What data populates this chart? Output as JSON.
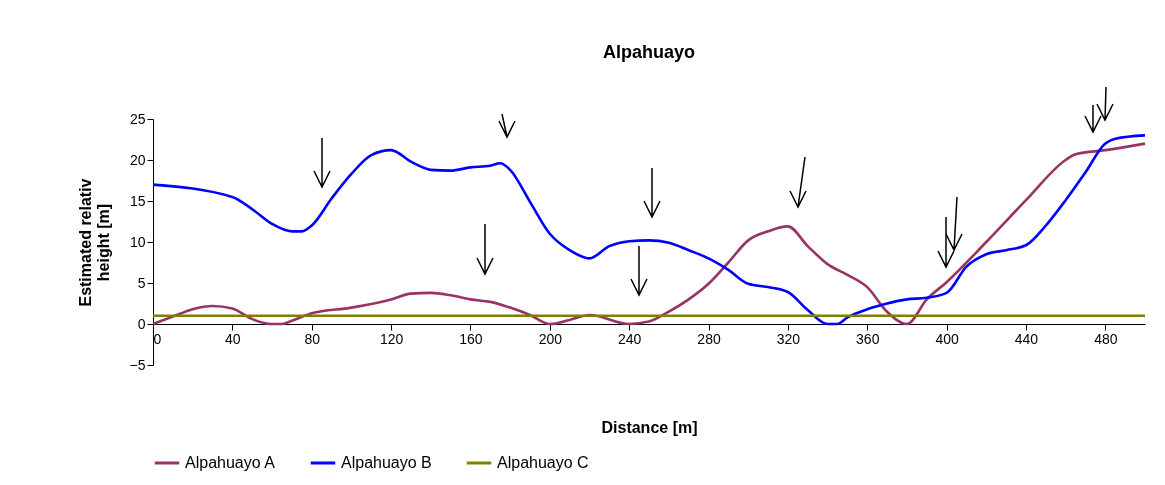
{
  "chart_data": {
    "type": "line",
    "title": "Alpahuayo",
    "xlabel": "Distance [m]",
    "ylabel": "Estimated relativ height [m]",
    "xlim": [
      0,
      500
    ],
    "xticks": [
      0,
      40,
      80,
      120,
      160,
      200,
      240,
      280,
      320,
      360,
      400,
      440,
      480
    ],
    "ylim": [
      -5,
      25
    ],
    "yticks": [
      -5,
      0,
      5,
      10,
      15,
      20,
      25
    ],
    "grid": false,
    "legend": "bottom",
    "marker": "none",
    "line_style": "solid",
    "series": [
      {
        "name": "Alpahuayo A",
        "color": "#993366",
        "x": [
          0,
          10,
          20,
          30,
          40,
          50,
          60,
          65,
          70,
          80,
          100,
          120,
          130,
          140,
          150,
          160,
          170,
          180,
          190,
          200,
          210,
          220,
          240,
          250,
          260,
          270,
          280,
          290,
          300,
          310,
          320,
          330,
          340,
          350,
          360,
          370,
          380,
          390,
          400,
          420,
          440,
          460,
          465,
          480,
          500
        ],
        "values": [
          0,
          0.9,
          1.8,
          2.2,
          1.9,
          0.6,
          0,
          0,
          0.4,
          1.3,
          2,
          3,
          3.7,
          3.8,
          3.5,
          3,
          2.7,
          2,
          1.1,
          0,
          0.5,
          1.1,
          0,
          0.3,
          1.5,
          3,
          4.9,
          7.5,
          10.2,
          11.3,
          11.9,
          9.5,
          7.3,
          6,
          4.5,
          1.5,
          0,
          3,
          5.1,
          10,
          15.1,
          20,
          20.7,
          21.2,
          22
        ]
      },
      {
        "name": "Alpahuayo B",
        "color": "#0000ff",
        "x": [
          0,
          40,
          50,
          60,
          70,
          75,
          80,
          90,
          100,
          110,
          120,
          130,
          140,
          150,
          160,
          170,
          175,
          180,
          190,
          200,
          210,
          220,
          230,
          240,
          250,
          260,
          270,
          280,
          290,
          300,
          310,
          320,
          330,
          340,
          345,
          350,
          360,
          370,
          380,
          390,
          400,
          410,
          420,
          430,
          440,
          450,
          460,
          470,
          480,
          485,
          500
        ],
        "values": [
          17,
          15.5,
          14,
          12.2,
          11.3,
          11.3,
          12,
          15.3,
          18.3,
          20.6,
          21.2,
          19.8,
          18.8,
          18.7,
          19.1,
          19.3,
          19.6,
          18.8,
          14.9,
          11,
          9,
          8,
          9.5,
          10.1,
          10.2,
          9.9,
          9,
          8,
          6.6,
          4.9,
          4.5,
          3.9,
          1.7,
          0,
          0,
          0.8,
          1.8,
          2.5,
          3,
          3.2,
          3.8,
          7,
          8.5,
          9,
          9.6,
          12,
          15.1,
          18.5,
          22,
          22.6,
          23
        ]
      },
      {
        "name": "Alpahuayo C",
        "color": "#808000",
        "x": [
          0,
          500
        ],
        "values": [
          1,
          1
        ]
      }
    ]
  }
}
